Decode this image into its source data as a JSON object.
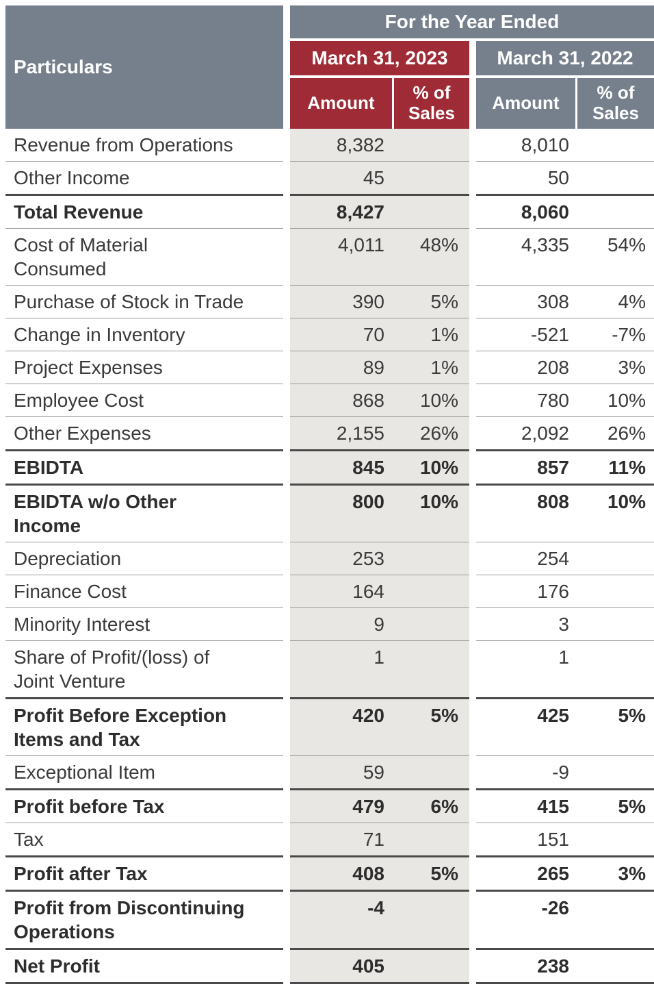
{
  "colors": {
    "slate_header": "#76808C",
    "maroon_header": "#9E2B36",
    "col_2023_bg": "#E9E7E3",
    "row_line": "#9B9B9B",
    "bold_line": "#4A4A4A",
    "text": "#3A3A3A"
  },
  "table": {
    "header": {
      "particulars": "Particulars",
      "year_ended": "For the Year Ended",
      "year_2023": "March 31, 2023",
      "year_2022": "March 31, 2022",
      "amount": "Amount",
      "pct_sales": "% of Sales"
    },
    "rows": [
      {
        "label": "Revenue from Operations",
        "bold": false,
        "a23": "8,382",
        "p23": "",
        "a22": "8,010",
        "p22": ""
      },
      {
        "label": "Other Income",
        "bold": false,
        "a23": "45",
        "p23": "",
        "a22": "50",
        "p22": ""
      },
      {
        "label": "Total Revenue",
        "bold": true,
        "a23": "8,427",
        "p23": "",
        "a22": "8,060",
        "p22": ""
      },
      {
        "label": "Cost of Material\nConsumed",
        "bold": false,
        "a23": "4,011",
        "p23": "48%",
        "a22": "4,335",
        "p22": "54%"
      },
      {
        "label": "Purchase of Stock in Trade",
        "bold": false,
        "a23": "390",
        "p23": "5%",
        "a22": "308",
        "p22": "4%"
      },
      {
        "label": "Change in Inventory",
        "bold": false,
        "a23": "70",
        "p23": "1%",
        "a22": "-521",
        "p22": "-7%"
      },
      {
        "label": "Project Expenses",
        "bold": false,
        "a23": "89",
        "p23": "1%",
        "a22": "208",
        "p22": "3%"
      },
      {
        "label": "Employee Cost",
        "bold": false,
        "a23": "868",
        "p23": "10%",
        "a22": "780",
        "p22": "10%"
      },
      {
        "label": "Other Expenses",
        "bold": false,
        "a23": "2,155",
        "p23": "26%",
        "a22": "2,092",
        "p22": "26%"
      },
      {
        "label": "EBIDTA",
        "bold": true,
        "a23": "845",
        "p23": "10%",
        "a22": "857",
        "p22": "11%"
      },
      {
        "label": "EBIDTA w/o Other\nIncome",
        "bold": true,
        "a23": "800",
        "p23": "10%",
        "a22": "808",
        "p22": "10%"
      },
      {
        "label": "Depreciation",
        "bold": false,
        "a23": "253",
        "p23": "",
        "a22": "254",
        "p22": ""
      },
      {
        "label": "Finance Cost",
        "bold": false,
        "a23": "164",
        "p23": "",
        "a22": "176",
        "p22": ""
      },
      {
        "label": "Minority Interest",
        "bold": false,
        "a23": "9",
        "p23": "",
        "a22": "3",
        "p22": ""
      },
      {
        "label": "Share of Profit/(loss) of\nJoint Venture",
        "bold": false,
        "a23": "1",
        "p23": "",
        "a22": "1",
        "p22": ""
      },
      {
        "label": "Profit Before Exception\nItems and Tax",
        "bold": true,
        "a23": "420",
        "p23": "5%",
        "a22": "425",
        "p22": "5%"
      },
      {
        "label": "Exceptional Item",
        "bold": false,
        "a23": "59",
        "p23": "",
        "a22": "-9",
        "p22": ""
      },
      {
        "label": "Profit before Tax",
        "bold": true,
        "a23": "479",
        "p23": "6%",
        "a22": "415",
        "p22": "5%"
      },
      {
        "label": "Tax",
        "bold": false,
        "a23": "71",
        "p23": "",
        "a22": "151",
        "p22": ""
      },
      {
        "label": "Profit after Tax",
        "bold": true,
        "a23": "408",
        "p23": "5%",
        "a22": "265",
        "p22": "3%"
      },
      {
        "label": "Profit from Discontinuing\nOperations",
        "bold": true,
        "a23": "-4",
        "p23": "",
        "a22": "-26",
        "p22": ""
      },
      {
        "label": "Net Profit",
        "bold": true,
        "a23": "405",
        "p23": "",
        "a22": "238",
        "p22": ""
      }
    ]
  }
}
